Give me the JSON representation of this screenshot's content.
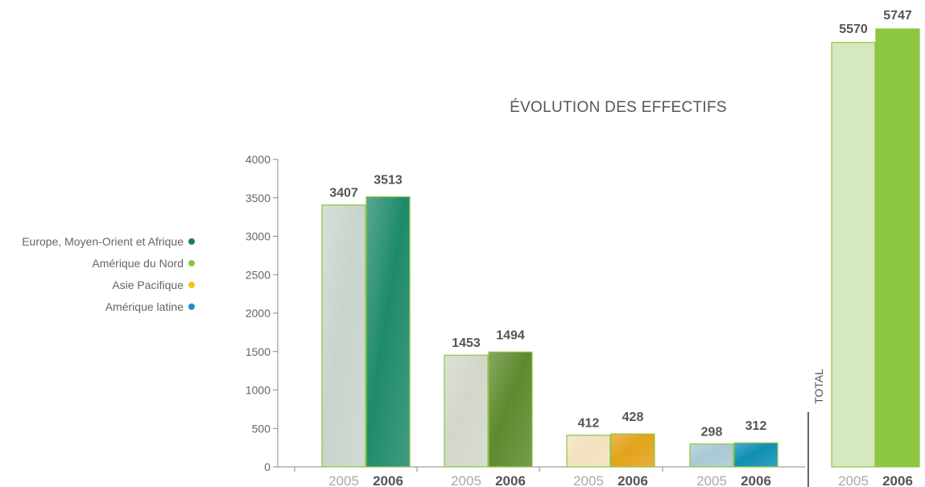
{
  "chart_data": {
    "type": "bar",
    "title": "ÉVOLUTION DES EFFECTIFS",
    "ylim": [
      0,
      4000
    ],
    "yticks": [
      0,
      500,
      1000,
      1500,
      2000,
      2500,
      3000,
      3500,
      4000
    ],
    "years": [
      "2005",
      "2006"
    ],
    "groups": [
      {
        "name": "Europe, Moyen-Orient et Afrique",
        "values": [
          3407,
          3513
        ],
        "color_2005": "#c9d4cc",
        "color_2006": "#1f8a6c"
      },
      {
        "name": "Amérique du Nord",
        "values": [
          1453,
          1494
        ],
        "color_2005": "#d2d6cb",
        "color_2006": "#5e8a2e"
      },
      {
        "name": "Asie Pacifique",
        "values": [
          412,
          428
        ],
        "color_2005": "#f3e0bf",
        "color_2006": "#e3a21a"
      },
      {
        "name": "Amérique latine",
        "values": [
          298,
          312
        ],
        "color_2005": "#a9c9d6",
        "color_2006": "#0f8fb5"
      }
    ],
    "total": {
      "label": "TOTAL",
      "values": [
        5570,
        5747
      ],
      "color_2005": "#d6e8bf",
      "color_2006": "#8dc63f"
    },
    "legend": [
      {
        "label": "Europe, Moyen-Orient et Afrique",
        "color": "#1a7f63"
      },
      {
        "label": "Amérique du Nord",
        "color": "#8dc63f"
      },
      {
        "label": "Asie Pacifique",
        "color": "#f7c31a"
      },
      {
        "label": "Amérique latine",
        "color": "#1b8fc9"
      }
    ],
    "legend_position": "left",
    "grid": false
  }
}
